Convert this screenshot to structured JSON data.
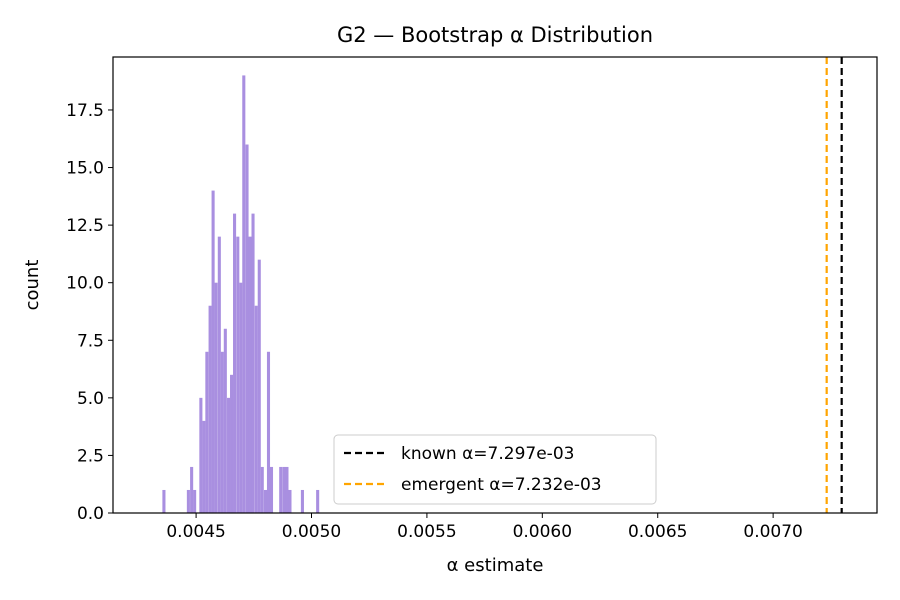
{
  "chart_data": {
    "type": "bar",
    "title": "G2 — Bootstrap α Distribution",
    "xlabel": "α estimate",
    "ylabel": "count",
    "xlim": [
      0.00414,
      0.00745
    ],
    "ylim": [
      0,
      19.8
    ],
    "x_ticks": [
      {
        "value": 0.0045,
        "label": "0.0045"
      },
      {
        "value": 0.005,
        "label": "0.0050"
      },
      {
        "value": 0.0055,
        "label": "0.0055"
      },
      {
        "value": 0.006,
        "label": "0.0060"
      },
      {
        "value": 0.0065,
        "label": "0.0065"
      },
      {
        "value": 0.007,
        "label": "0.0070"
      }
    ],
    "y_ticks": [
      {
        "value": 0.0,
        "label": "0.0"
      },
      {
        "value": 2.5,
        "label": "2.5"
      },
      {
        "value": 5.0,
        "label": "5.0"
      },
      {
        "value": 7.5,
        "label": "7.5"
      },
      {
        "value": 10.0,
        "label": "10.0"
      },
      {
        "value": 12.5,
        "label": "12.5"
      },
      {
        "value": 15.0,
        "label": "15.0"
      },
      {
        "value": 17.5,
        "label": "17.5"
      }
    ],
    "bin_width": 1.334e-05,
    "series": [
      {
        "color": "#a98fe0",
        "bins": [
          {
            "x": 0.004354,
            "count": 1
          },
          {
            "x": 0.00446,
            "count": 1
          },
          {
            "x": 0.004474,
            "count": 2
          },
          {
            "x": 0.004487,
            "count": 1
          },
          {
            "x": 0.004514,
            "count": 5
          },
          {
            "x": 0.004527,
            "count": 4
          },
          {
            "x": 0.00454,
            "count": 7
          },
          {
            "x": 0.004554,
            "count": 9
          },
          {
            "x": 0.004567,
            "count": 14
          },
          {
            "x": 0.00458,
            "count": 10
          },
          {
            "x": 0.004594,
            "count": 12
          },
          {
            "x": 0.004607,
            "count": 7
          },
          {
            "x": 0.00462,
            "count": 8
          },
          {
            "x": 0.004634,
            "count": 5
          },
          {
            "x": 0.004647,
            "count": 6
          },
          {
            "x": 0.00466,
            "count": 13
          },
          {
            "x": 0.004674,
            "count": 12
          },
          {
            "x": 0.004687,
            "count": 10
          },
          {
            "x": 0.0047,
            "count": 19
          },
          {
            "x": 0.004714,
            "count": 16
          },
          {
            "x": 0.004727,
            "count": 12
          },
          {
            "x": 0.00474,
            "count": 13
          },
          {
            "x": 0.004754,
            "count": 9
          },
          {
            "x": 0.004767,
            "count": 11
          },
          {
            "x": 0.00478,
            "count": 2
          },
          {
            "x": 0.004794,
            "count": 1
          },
          {
            "x": 0.004807,
            "count": 7
          },
          {
            "x": 0.00482,
            "count": 2
          },
          {
            "x": 0.00486,
            "count": 2
          },
          {
            "x": 0.004874,
            "count": 2
          },
          {
            "x": 0.004887,
            "count": 2
          },
          {
            "x": 0.0049,
            "count": 1
          },
          {
            "x": 0.004954,
            "count": 1
          },
          {
            "x": 0.00502,
            "count": 1
          }
        ]
      }
    ],
    "reference_lines": [
      {
        "label": "known α=7.297e-03",
        "x": 0.007297,
        "color": "#000000",
        "style": "dashed"
      },
      {
        "label": "emergent α=7.232e-03",
        "x": 0.007232,
        "color": "#ffa500",
        "style": "dashed"
      }
    ],
    "legend_position": "bottom-center",
    "grid": false
  }
}
